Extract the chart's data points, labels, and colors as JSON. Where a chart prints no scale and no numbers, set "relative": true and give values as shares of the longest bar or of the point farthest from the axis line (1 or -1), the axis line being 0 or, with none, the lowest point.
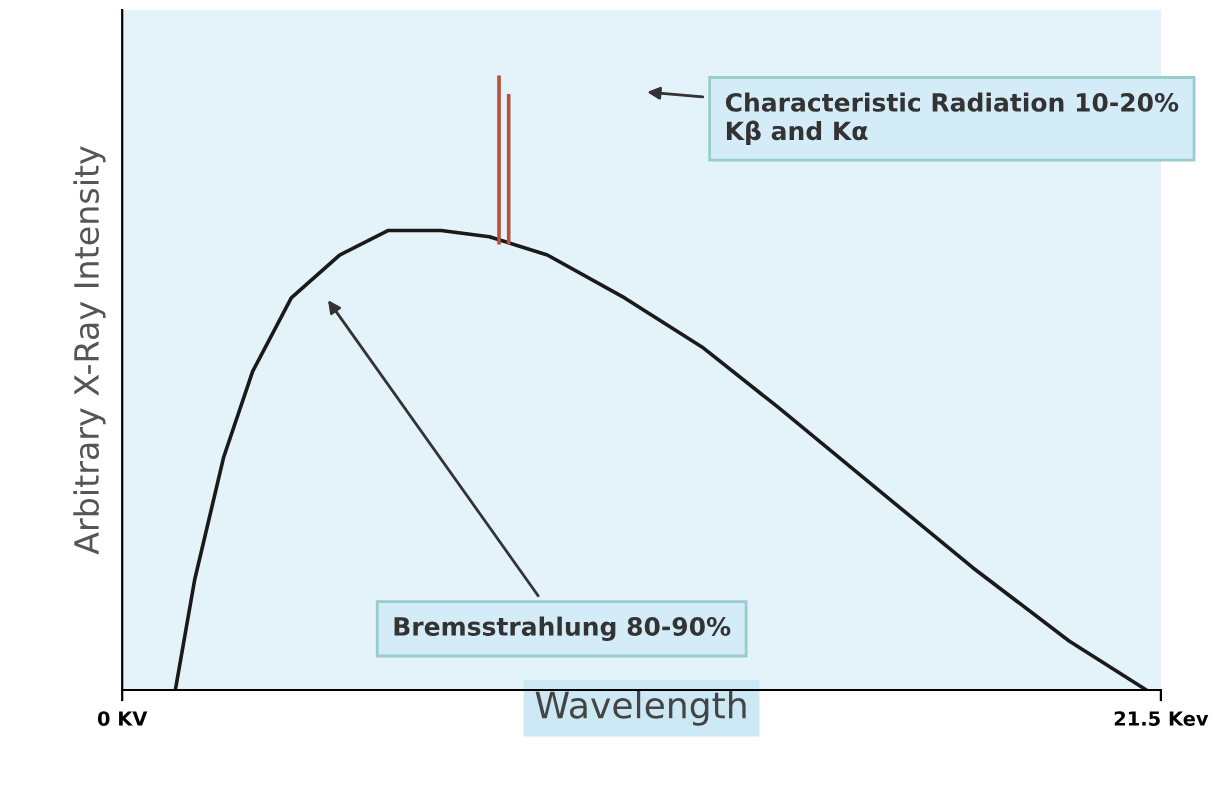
{
  "chart_data": {
    "type": "line",
    "relative": true,
    "xlabel": "Wavelength",
    "ylabel": "Arbitrary X-Ray Intensity",
    "xlim": [
      0,
      21.5
    ],
    "xticks": [
      {
        "value": 0,
        "label": "0 KV"
      },
      {
        "value": 21.5,
        "label": "21.5 Kev"
      }
    ],
    "tick_labels": "x",
    "grid": false,
    "legend": false,
    "marker": "none",
    "line_style": "solid",
    "series": [
      {
        "color": "#1a1a1a",
        "x": [
          1.1,
          1.5,
          2.1,
          2.7,
          3.5,
          4.5,
          5.5,
          6.6,
          7.6,
          8.8,
          10.4,
          12.0,
          13.6,
          15.6,
          17.6,
          19.6,
          21.2
        ],
        "values": [
          0,
          0.18,
          0.38,
          0.52,
          0.64,
          0.71,
          0.75,
          0.75,
          0.74,
          0.71,
          0.64,
          0.56,
          0.46,
          0.33,
          0.2,
          0.08,
          0
        ]
      },
      {
        "color": "#b5503c",
        "x": [
          7.8,
          7.8
        ],
        "values": [
          0.73,
          1
        ]
      },
      {
        "color": "#b5503c",
        "x": [
          8.0,
          8.0
        ],
        "values": [
          0.73,
          0.97
        ]
      }
    ],
    "annotations": [
      "Characteristic Radiation 10-20%\nKβ and Kα",
      "Bremsstrahlung 80-90%"
    ]
  }
}
